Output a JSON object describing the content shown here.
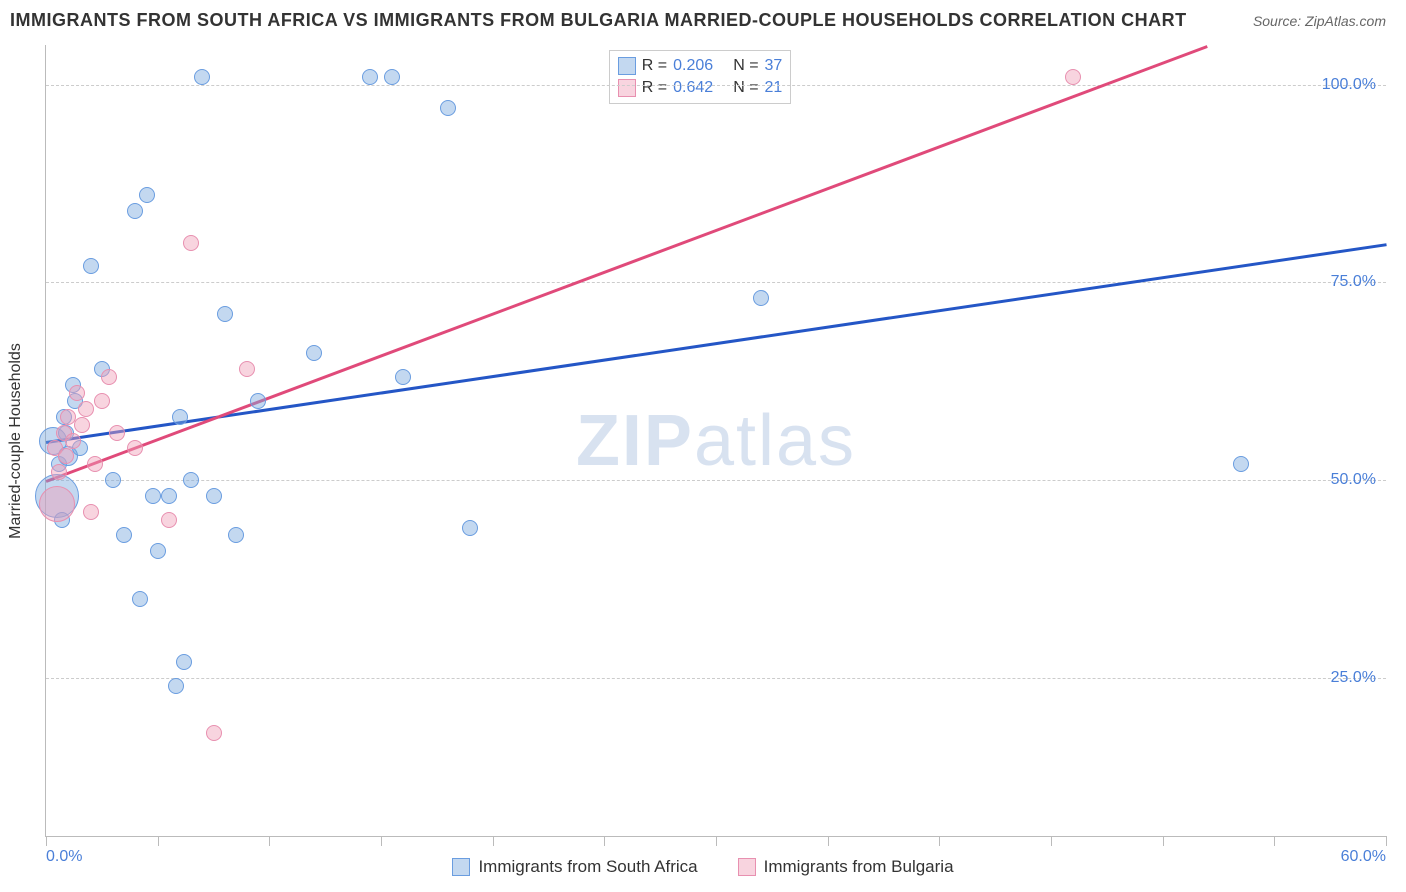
{
  "title": "IMMIGRANTS FROM SOUTH AFRICA VS IMMIGRANTS FROM BULGARIA MARRIED-COUPLE HOUSEHOLDS CORRELATION CHART",
  "source": "Source: ZipAtlas.com",
  "watermark_bold": "ZIP",
  "watermark_light": "atlas",
  "chart": {
    "type": "scatter",
    "xlim": [
      0,
      60
    ],
    "ylim": [
      5,
      105
    ],
    "x_ticks": [
      0,
      5,
      10,
      15,
      20,
      25,
      30,
      35,
      40,
      45,
      50,
      55,
      60
    ],
    "x_tick_labels": {
      "0": "0.0%",
      "60": "60.0%"
    },
    "y_gridlines": [
      25,
      50,
      75,
      100
    ],
    "y_tick_labels": {
      "25": "25.0%",
      "50": "50.0%",
      "75": "75.0%",
      "100": "100.0%"
    },
    "y_axis_label": "Married-couple Households",
    "background_color": "#ffffff",
    "grid_color": "#cccccc",
    "series": [
      {
        "name": "Immigrants from South Africa",
        "color_fill": "rgba(123,168,222,0.45)",
        "color_stroke": "#6a9de0",
        "trend": {
          "x1": 0,
          "y1": 55,
          "x2": 60,
          "y2": 80,
          "color": "#2456c6",
          "width": 2.5
        },
        "R": "0.206",
        "N": "37",
        "points": [
          {
            "x": 0.3,
            "y": 55,
            "r": 14
          },
          {
            "x": 0.5,
            "y": 48,
            "r": 22
          },
          {
            "x": 0.6,
            "y": 52,
            "r": 8
          },
          {
            "x": 0.7,
            "y": 45,
            "r": 8
          },
          {
            "x": 0.8,
            "y": 58,
            "r": 8
          },
          {
            "x": 0.9,
            "y": 56,
            "r": 8
          },
          {
            "x": 1.0,
            "y": 53,
            "r": 10
          },
          {
            "x": 1.2,
            "y": 62,
            "r": 8
          },
          {
            "x": 1.3,
            "y": 60,
            "r": 8
          },
          {
            "x": 1.5,
            "y": 54,
            "r": 8
          },
          {
            "x": 2.0,
            "y": 77,
            "r": 8
          },
          {
            "x": 2.5,
            "y": 64,
            "r": 8
          },
          {
            "x": 3.0,
            "y": 50,
            "r": 8
          },
          {
            "x": 3.5,
            "y": 43,
            "r": 8
          },
          {
            "x": 4.0,
            "y": 84,
            "r": 8
          },
          {
            "x": 4.2,
            "y": 35,
            "r": 8
          },
          {
            "x": 4.5,
            "y": 86,
            "r": 8
          },
          {
            "x": 4.8,
            "y": 48,
            "r": 8
          },
          {
            "x": 5.0,
            "y": 41,
            "r": 8
          },
          {
            "x": 5.5,
            "y": 48,
            "r": 8
          },
          {
            "x": 5.8,
            "y": 24,
            "r": 8
          },
          {
            "x": 6.0,
            "y": 58,
            "r": 8
          },
          {
            "x": 6.2,
            "y": 27,
            "r": 8
          },
          {
            "x": 6.5,
            "y": 50,
            "r": 8
          },
          {
            "x": 7.0,
            "y": 101,
            "r": 8
          },
          {
            "x": 7.5,
            "y": 48,
            "r": 8
          },
          {
            "x": 8.0,
            "y": 71,
            "r": 8
          },
          {
            "x": 8.5,
            "y": 43,
            "r": 8
          },
          {
            "x": 9.5,
            "y": 60,
            "r": 8
          },
          {
            "x": 12.0,
            "y": 66,
            "r": 8
          },
          {
            "x": 14.5,
            "y": 101,
            "r": 8
          },
          {
            "x": 15.5,
            "y": 101,
            "r": 8
          },
          {
            "x": 16.0,
            "y": 63,
            "r": 8
          },
          {
            "x": 18.0,
            "y": 97,
            "r": 8
          },
          {
            "x": 19.0,
            "y": 44,
            "r": 8
          },
          {
            "x": 32.0,
            "y": 73,
            "r": 8
          },
          {
            "x": 53.5,
            "y": 52,
            "r": 8
          }
        ]
      },
      {
        "name": "Immigrants from Bulgaria",
        "color_fill": "rgba(240,160,185,0.45)",
        "color_stroke": "#e890b0",
        "trend": {
          "x1": 0,
          "y1": 50,
          "x2": 52,
          "y2": 105,
          "color": "#e04a7a",
          "width": 2.5
        },
        "R": "0.642",
        "N": "21",
        "points": [
          {
            "x": 0.4,
            "y": 54,
            "r": 8
          },
          {
            "x": 0.5,
            "y": 47,
            "r": 18
          },
          {
            "x": 0.6,
            "y": 51,
            "r": 8
          },
          {
            "x": 0.8,
            "y": 56,
            "r": 8
          },
          {
            "x": 0.9,
            "y": 53,
            "r": 8
          },
          {
            "x": 1.0,
            "y": 58,
            "r": 8
          },
          {
            "x": 1.2,
            "y": 55,
            "r": 8
          },
          {
            "x": 1.4,
            "y": 61,
            "r": 8
          },
          {
            "x": 1.6,
            "y": 57,
            "r": 8
          },
          {
            "x": 1.8,
            "y": 59,
            "r": 8
          },
          {
            "x": 2.0,
            "y": 46,
            "r": 8
          },
          {
            "x": 2.2,
            "y": 52,
            "r": 8
          },
          {
            "x": 2.5,
            "y": 60,
            "r": 8
          },
          {
            "x": 2.8,
            "y": 63,
            "r": 8
          },
          {
            "x": 3.2,
            "y": 56,
            "r": 8
          },
          {
            "x": 4.0,
            "y": 54,
            "r": 8
          },
          {
            "x": 5.5,
            "y": 45,
            "r": 8
          },
          {
            "x": 6.5,
            "y": 80,
            "r": 8
          },
          {
            "x": 7.5,
            "y": 18,
            "r": 8
          },
          {
            "x": 9.0,
            "y": 64,
            "r": 8
          },
          {
            "x": 46.0,
            "y": 101,
            "r": 8
          }
        ]
      }
    ],
    "legend_top": {
      "r_label": "R =",
      "n_label": "N ="
    }
  }
}
